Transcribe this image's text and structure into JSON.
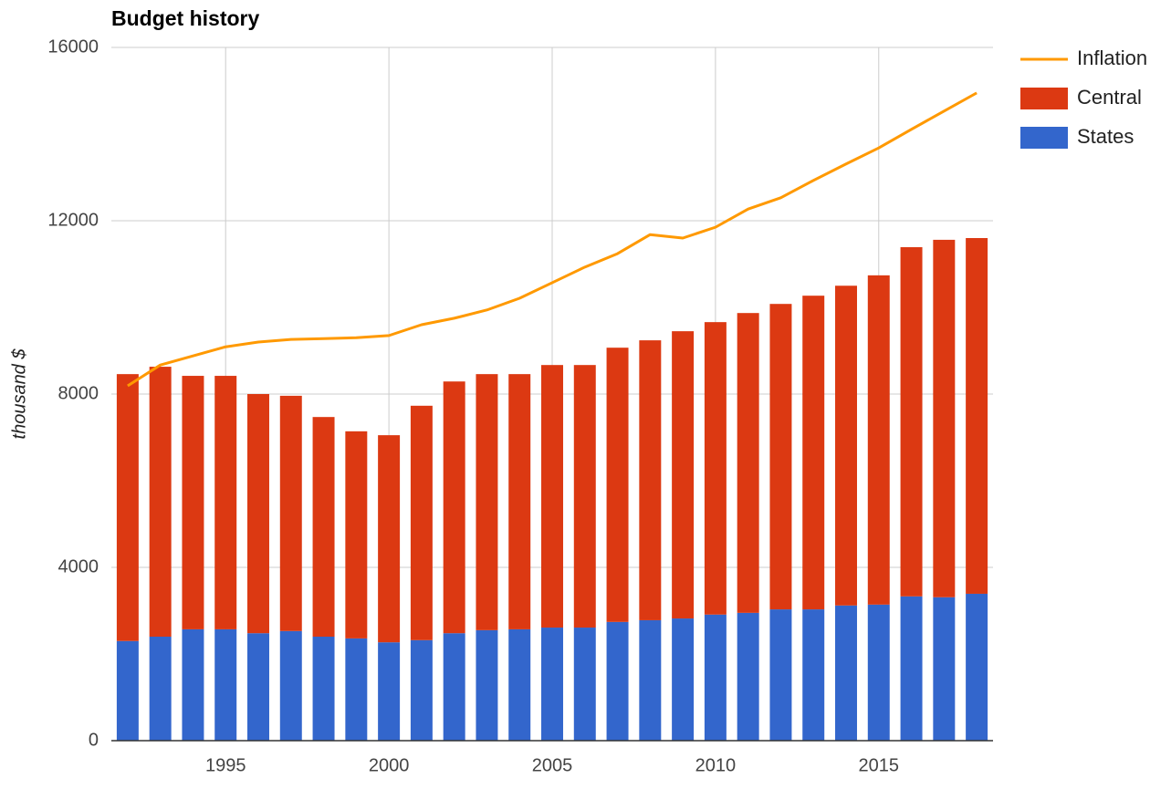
{
  "chart_data": {
    "type": "bar",
    "title": "Budget history",
    "y_label": "thousand $",
    "stacked": true,
    "x": [
      1992,
      1993,
      1994,
      1995,
      1996,
      1997,
      1998,
      1999,
      2000,
      2001,
      2002,
      2003,
      2004,
      2005,
      2006,
      2007,
      2008,
      2009,
      2010,
      2011,
      2012,
      2013,
      2014,
      2015,
      2016,
      2017,
      2018
    ],
    "series": [
      {
        "name": "Inflation",
        "type": "line",
        "color": "#ff9900",
        "values": [
          8190,
          8670,
          8880,
          9090,
          9200,
          9260,
          9280,
          9300,
          9350,
          9600,
          9750,
          9940,
          10210,
          10570,
          10930,
          11240,
          11680,
          11600,
          11850,
          12270,
          12530,
          12930,
          13310,
          13680,
          14110,
          14530,
          14950
        ]
      },
      {
        "name": "Central",
        "type": "bar",
        "color": "#dc3912",
        "values": [
          6160,
          6230,
          5850,
          5850,
          5520,
          5430,
          5070,
          4780,
          4780,
          5410,
          5810,
          5910,
          5890,
          6060,
          6060,
          6330,
          6460,
          6630,
          6750,
          6920,
          7050,
          7240,
          7380,
          7600,
          8060,
          8250,
          8210
        ]
      },
      {
        "name": "States",
        "type": "bar",
        "color": "#3366cc",
        "values": [
          2300,
          2400,
          2570,
          2570,
          2480,
          2530,
          2400,
          2360,
          2270,
          2320,
          2480,
          2550,
          2570,
          2610,
          2610,
          2740,
          2780,
          2820,
          2910,
          2950,
          3030,
          3030,
          3120,
          3140,
          3330,
          3310,
          3390
        ]
      }
    ],
    "xlim": [
      1991.5,
      2018.5
    ],
    "xticks": [
      1995,
      2000,
      2005,
      2010,
      2015
    ],
    "ylim": [
      0,
      16000
    ],
    "yticks": [
      0,
      4000,
      8000,
      12000,
      16000
    ],
    "grid": true,
    "legend": "right"
  }
}
